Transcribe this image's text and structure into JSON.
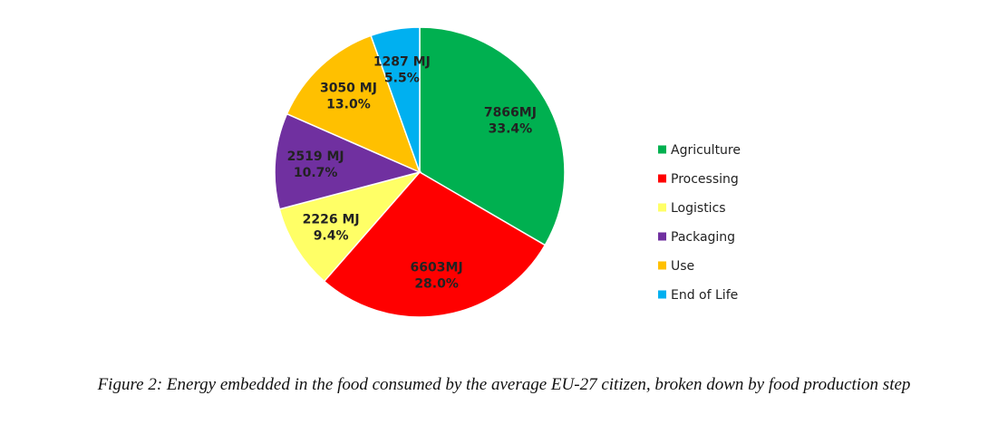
{
  "caption": "Figure 2: Energy embedded in the food consumed by the average EU-27 citizen, broken down by food production step",
  "chart_data": {
    "type": "pie",
    "title": "",
    "unit": "MJ",
    "start_angle_deg": 0,
    "direction": "clockwise",
    "legend_position": "right",
    "slices": [
      {
        "name": "Agriculture",
        "value": 7866,
        "value_label": "7866MJ",
        "percent_label": "33.4%",
        "color": "#00b050"
      },
      {
        "name": "Processing",
        "value": 6603,
        "value_label": "6603MJ",
        "percent_label": "28.0%",
        "color": "#ff0000"
      },
      {
        "name": "Logistics",
        "value": 2226,
        "value_label": "2226 MJ",
        "percent_label": "9.4%",
        "color": "#ffff66"
      },
      {
        "name": "Packaging",
        "value": 2519,
        "value_label": "2519 MJ",
        "percent_label": "10.7%",
        "color": "#7030a0"
      },
      {
        "name": "Use",
        "value": 3050,
        "value_label": "3050 MJ",
        "percent_label": "13.0%",
        "color": "#ffc000"
      },
      {
        "name": "End of Life",
        "value": 1287,
        "value_label": "1287 MJ",
        "percent_label": "5.5%",
        "color": "#00b0f0"
      }
    ]
  }
}
